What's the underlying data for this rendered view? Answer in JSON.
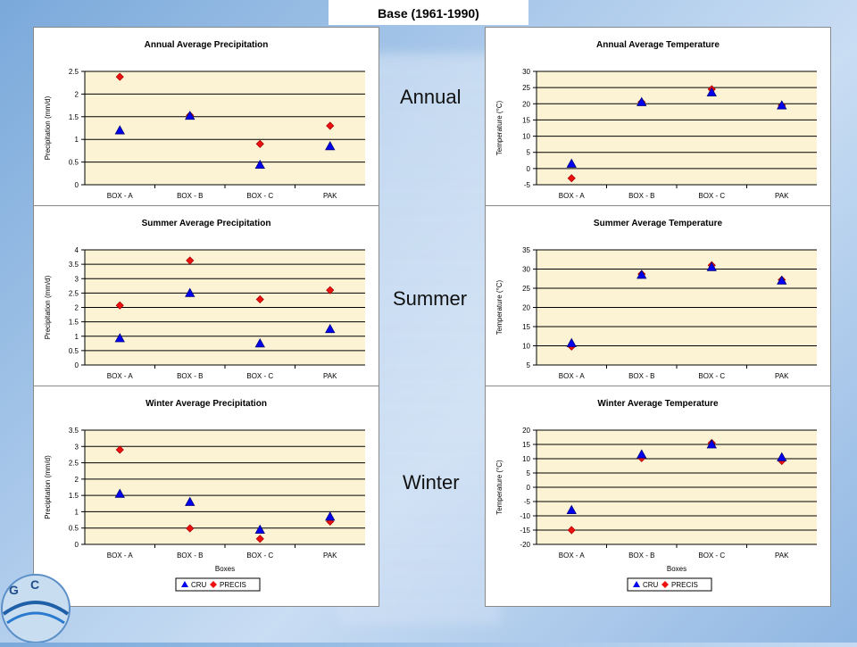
{
  "header": "Base (1961-1990)",
  "side_labels": [
    "Annual",
    "Summer",
    "Winter"
  ],
  "logo_text": "GCISC",
  "legend": [
    "CRU",
    "PRECIS"
  ],
  "chart_data": [
    {
      "type": "scatter",
      "title": "Annual Average Precipitation",
      "ylabel": "Precipitation (mm/d)",
      "xlabel": "",
      "categories": [
        "BOX - A",
        "BOX - B",
        "BOX - C",
        "PAK"
      ],
      "ylim": [
        0,
        2.5
      ],
      "yticks": [
        "0",
        "0.5",
        "1",
        "1.5",
        "2",
        "2.5"
      ],
      "series": [
        {
          "name": "CRU",
          "marker": "triangle",
          "color": "#0000ee",
          "values": [
            1.2,
            1.52,
            0.44,
            0.85
          ]
        },
        {
          "name": "PRECIS",
          "marker": "diamond",
          "color": "#ee1111",
          "values": [
            2.38,
            1.53,
            0.9,
            1.3
          ]
        }
      ]
    },
    {
      "type": "scatter",
      "title": "Annual Average Temperature",
      "ylabel": "Temperature (°C)",
      "xlabel": "",
      "categories": [
        "BOX - A",
        "BOX - B",
        "BOX - C",
        "PAK"
      ],
      "ylim": [
        -5,
        30
      ],
      "yticks": [
        "-5",
        "0",
        "5",
        "10",
        "15",
        "20",
        "25",
        "30"
      ],
      "series": [
        {
          "name": "CRU",
          "marker": "triangle",
          "color": "#0000ee",
          "values": [
            1.5,
            20.5,
            23.5,
            19.5
          ]
        },
        {
          "name": "PRECIS",
          "marker": "diamond",
          "color": "#ee1111",
          "values": [
            -3,
            20.5,
            24.5,
            19.5
          ]
        }
      ]
    },
    {
      "type": "scatter",
      "title": "Summer Average Precipitation",
      "ylabel": "Precipitation (mm/d)",
      "xlabel": "",
      "categories": [
        "BOX - A",
        "BOX - B",
        "BOX - C",
        "PAK"
      ],
      "ylim": [
        0,
        4
      ],
      "yticks": [
        "0",
        "0.5",
        "1",
        "1.5",
        "2",
        "2.5",
        "3",
        "3.5",
        "4"
      ],
      "series": [
        {
          "name": "CRU",
          "marker": "triangle",
          "color": "#0000ee",
          "values": [
            0.93,
            2.5,
            0.75,
            1.25
          ]
        },
        {
          "name": "PRECIS",
          "marker": "diamond",
          "color": "#ee1111",
          "values": [
            2.07,
            3.63,
            2.28,
            2.6
          ]
        }
      ]
    },
    {
      "type": "scatter",
      "title": "Summer Average Temperature",
      "ylabel": "Temperature (°C)",
      "xlabel": "",
      "categories": [
        "BOX - A",
        "BOX - B",
        "BOX - C",
        "PAK"
      ],
      "ylim": [
        5,
        35
      ],
      "yticks": [
        "5",
        "10",
        "15",
        "20",
        "25",
        "30",
        "35"
      ],
      "series": [
        {
          "name": "CRU",
          "marker": "triangle",
          "color": "#0000ee",
          "values": [
            10.7,
            28.5,
            30.5,
            27
          ]
        },
        {
          "name": "PRECIS",
          "marker": "diamond",
          "color": "#ee1111",
          "values": [
            9.8,
            28.7,
            31,
            27.2
          ]
        }
      ]
    },
    {
      "type": "scatter",
      "title": "Winter Average Precipitation",
      "ylabel": "Precipitation (mm/d)",
      "xlabel": "Boxes",
      "categories": [
        "BOX - A",
        "BOX - B",
        "BOX - C",
        "PAK"
      ],
      "ylim": [
        0,
        3.5
      ],
      "yticks": [
        "0",
        "0.5",
        "1",
        "1.5",
        "2",
        "2.5",
        "3",
        "3.5"
      ],
      "legend_position": "bottom",
      "series": [
        {
          "name": "CRU",
          "marker": "triangle",
          "color": "#0000ee",
          "values": [
            1.55,
            1.3,
            0.45,
            0.85
          ]
        },
        {
          "name": "PRECIS",
          "marker": "diamond",
          "color": "#ee1111",
          "values": [
            2.9,
            0.49,
            0.17,
            0.7
          ]
        }
      ]
    },
    {
      "type": "scatter",
      "title": "Winter Average Temperature",
      "ylabel": "Temperature (°C)",
      "xlabel": "Boxes",
      "categories": [
        "BOX - A",
        "BOX - B",
        "BOX - C",
        "PAK"
      ],
      "ylim": [
        -20,
        20
      ],
      "yticks": [
        "-20",
        "-15",
        "-10",
        "-5",
        "0",
        "5",
        "10",
        "15",
        "20"
      ],
      "legend_position": "bottom",
      "series": [
        {
          "name": "CRU",
          "marker": "triangle",
          "color": "#0000ee",
          "values": [
            -8,
            11.5,
            15,
            10.5
          ]
        },
        {
          "name": "PRECIS",
          "marker": "diamond",
          "color": "#ee1111",
          "values": [
            -15,
            10.2,
            15.5,
            9.2
          ]
        }
      ]
    }
  ]
}
